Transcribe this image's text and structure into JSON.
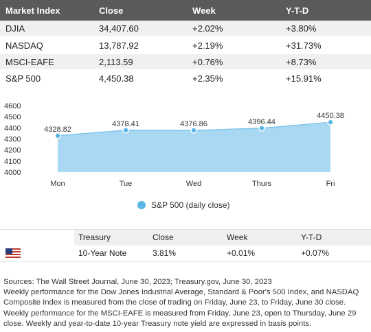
{
  "market_table": {
    "headers": [
      "Market Index",
      "Close",
      "Week",
      "Y-T-D"
    ],
    "rows": [
      [
        "DJIA",
        "34,407.60",
        "+2.02%",
        "+3.80%"
      ],
      [
        "NASDAQ",
        "13,787.92",
        "+2.19%",
        "+31.73%"
      ],
      [
        "MSCI-EAFE",
        "2,113.59",
        "+0.76%",
        "+8.73%"
      ],
      [
        "S&P 500",
        "4,450.38",
        "+2.35%",
        "+15.91%"
      ]
    ]
  },
  "chart_data": {
    "type": "area",
    "categories": [
      "Mon",
      "Tue",
      "Wed",
      "Thurs",
      "Fri"
    ],
    "series": [
      {
        "name": "S&P 500 (daily close)",
        "values": [
          4328.82,
          4378.41,
          4376.86,
          4396.44,
          4450.38
        ]
      }
    ],
    "data_labels": [
      "4328.82",
      "4378.41",
      "4376.86",
      "4396.44",
      "4450.38"
    ],
    "y_ticks": [
      4000,
      4100,
      4200,
      4300,
      4400,
      4500,
      4600
    ],
    "ylim": [
      4000,
      4600
    ],
    "grid": false,
    "legend_position": "bottom",
    "fill_color": "#a9d9f2",
    "marker_color": "#5bb8e6"
  },
  "treasury_table": {
    "headers": [
      "",
      "Treasury",
      "Close",
      "Week",
      "Y-T-D"
    ],
    "rows": [
      {
        "flag": "us-flag-icon",
        "name": "10-Year Note",
        "close": "3.81%",
        "week": "+0.01%",
        "ytd": "+0.07%"
      }
    ]
  },
  "footnote": {
    "sources": "Sources: The Wall Street Journal, June 30, 2023; Treasury.gov, June 30, 2023",
    "body": "Weekly performance for the Dow Jones Industrial Average, Standard & Poor's 500 Index, and NASDAQ Composite Index is measured from the close of trading on Friday, June 23, to Friday, June 30 close. Weekly performance for the MSCI-EAFE is measured from Friday, June 23, open to Thursday, June 29 close. Weekly and year-to-date 10-year Treasury note yield are expressed in basis points."
  }
}
